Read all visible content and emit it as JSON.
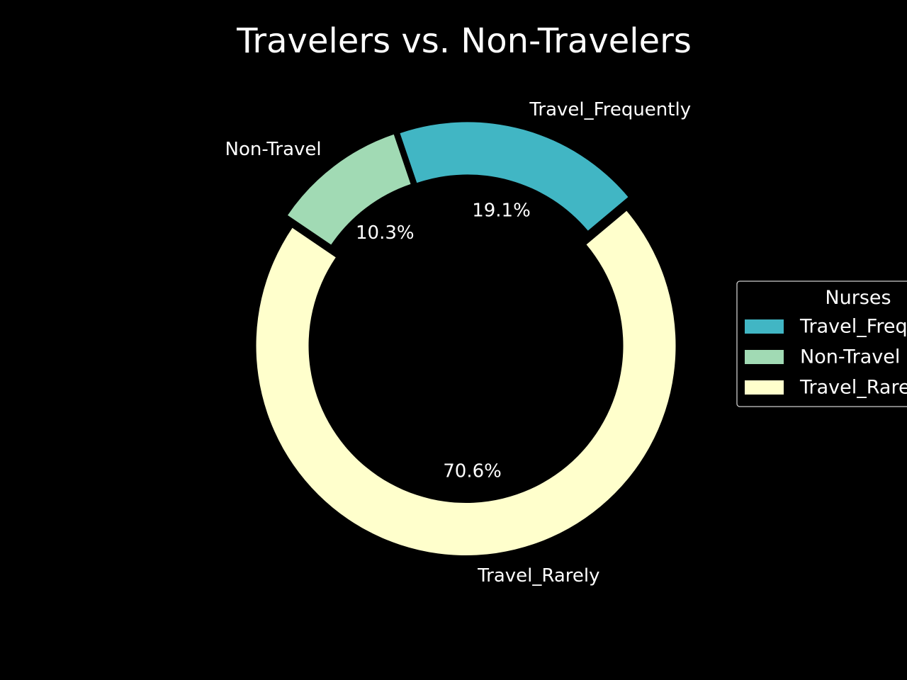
{
  "chart_data": {
    "type": "pie",
    "style": "donut",
    "title": "Travelers vs. Non-Travelers",
    "categories": [
      "Travel_Frequently",
      "Non-Travel",
      "Travel_Rarely"
    ],
    "values": [
      19.1,
      10.3,
      70.6
    ],
    "value_labels": [
      "19.1%",
      "10.3%",
      "70.6%"
    ],
    "colors": [
      "#41b6c4",
      "#a1dab4",
      "#ffffcc"
    ],
    "legend": {
      "title": "Nurses",
      "placement": "center-right, partially clipped by the right edge",
      "entries": [
        "Travel_Frequently",
        "Non-Travel",
        "Travel_Rarely"
      ]
    },
    "background": "#000000",
    "text_color": "#ffffff"
  }
}
